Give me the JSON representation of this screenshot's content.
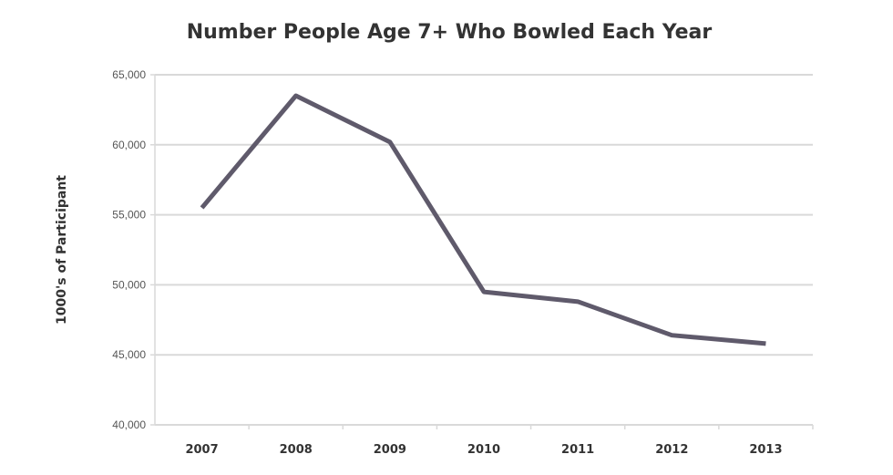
{
  "chart_data": {
    "type": "line",
    "title": "Number People Age 7+ Who Bowled Each Year",
    "xlabel": "",
    "ylabel": "1000's of Participant",
    "categories": [
      "2007",
      "2008",
      "2009",
      "2010",
      "2011",
      "2012",
      "2013"
    ],
    "values": [
      55500,
      63500,
      60200,
      49500,
      48800,
      46400,
      45800
    ],
    "ylim": [
      40000,
      65000
    ],
    "yticks": [
      40000,
      45000,
      50000,
      55000,
      60000,
      65000
    ],
    "ytick_labels": [
      "40,000",
      "45,000",
      "50,000",
      "55,000",
      "60,000",
      "65,000"
    ],
    "grid": true,
    "legend": "none",
    "line_color": "#5f5a6b",
    "grid_color": "#d9d9d9"
  }
}
